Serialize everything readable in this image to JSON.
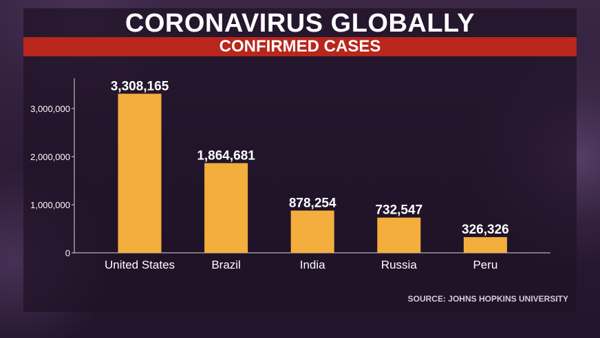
{
  "header": {
    "title": "CORONAVIRUS GLOBALLY",
    "subtitle": "CONFIRMED CASES"
  },
  "source": "SOURCE: JOHNS HOPKINS UNIVERSITY",
  "colors": {
    "bar": "#f4ae3d",
    "subtitle_band": "#b8261c",
    "axis": "#d9d9d9",
    "text": "#ffffff"
  },
  "chart_data": {
    "type": "bar",
    "title": "CORONAVIRUS GLOBALLY",
    "subtitle": "CONFIRMED CASES",
    "categories": [
      "United States",
      "Brazil",
      "India",
      "Russia",
      "Peru"
    ],
    "values": [
      3308165,
      1864681,
      878254,
      732547,
      326326
    ],
    "data_labels": [
      "3,308,165",
      "1,864,681",
      "878,254",
      "732,547",
      "326,326"
    ],
    "yticks": [
      0,
      1000000,
      2000000,
      3000000
    ],
    "ytick_labels": [
      "0",
      "1,000,000",
      "2,000,000",
      "3,000,000"
    ],
    "ylim": [
      0,
      3600000
    ],
    "xlabel": "",
    "ylabel": "",
    "grid": false,
    "legend": "none"
  }
}
